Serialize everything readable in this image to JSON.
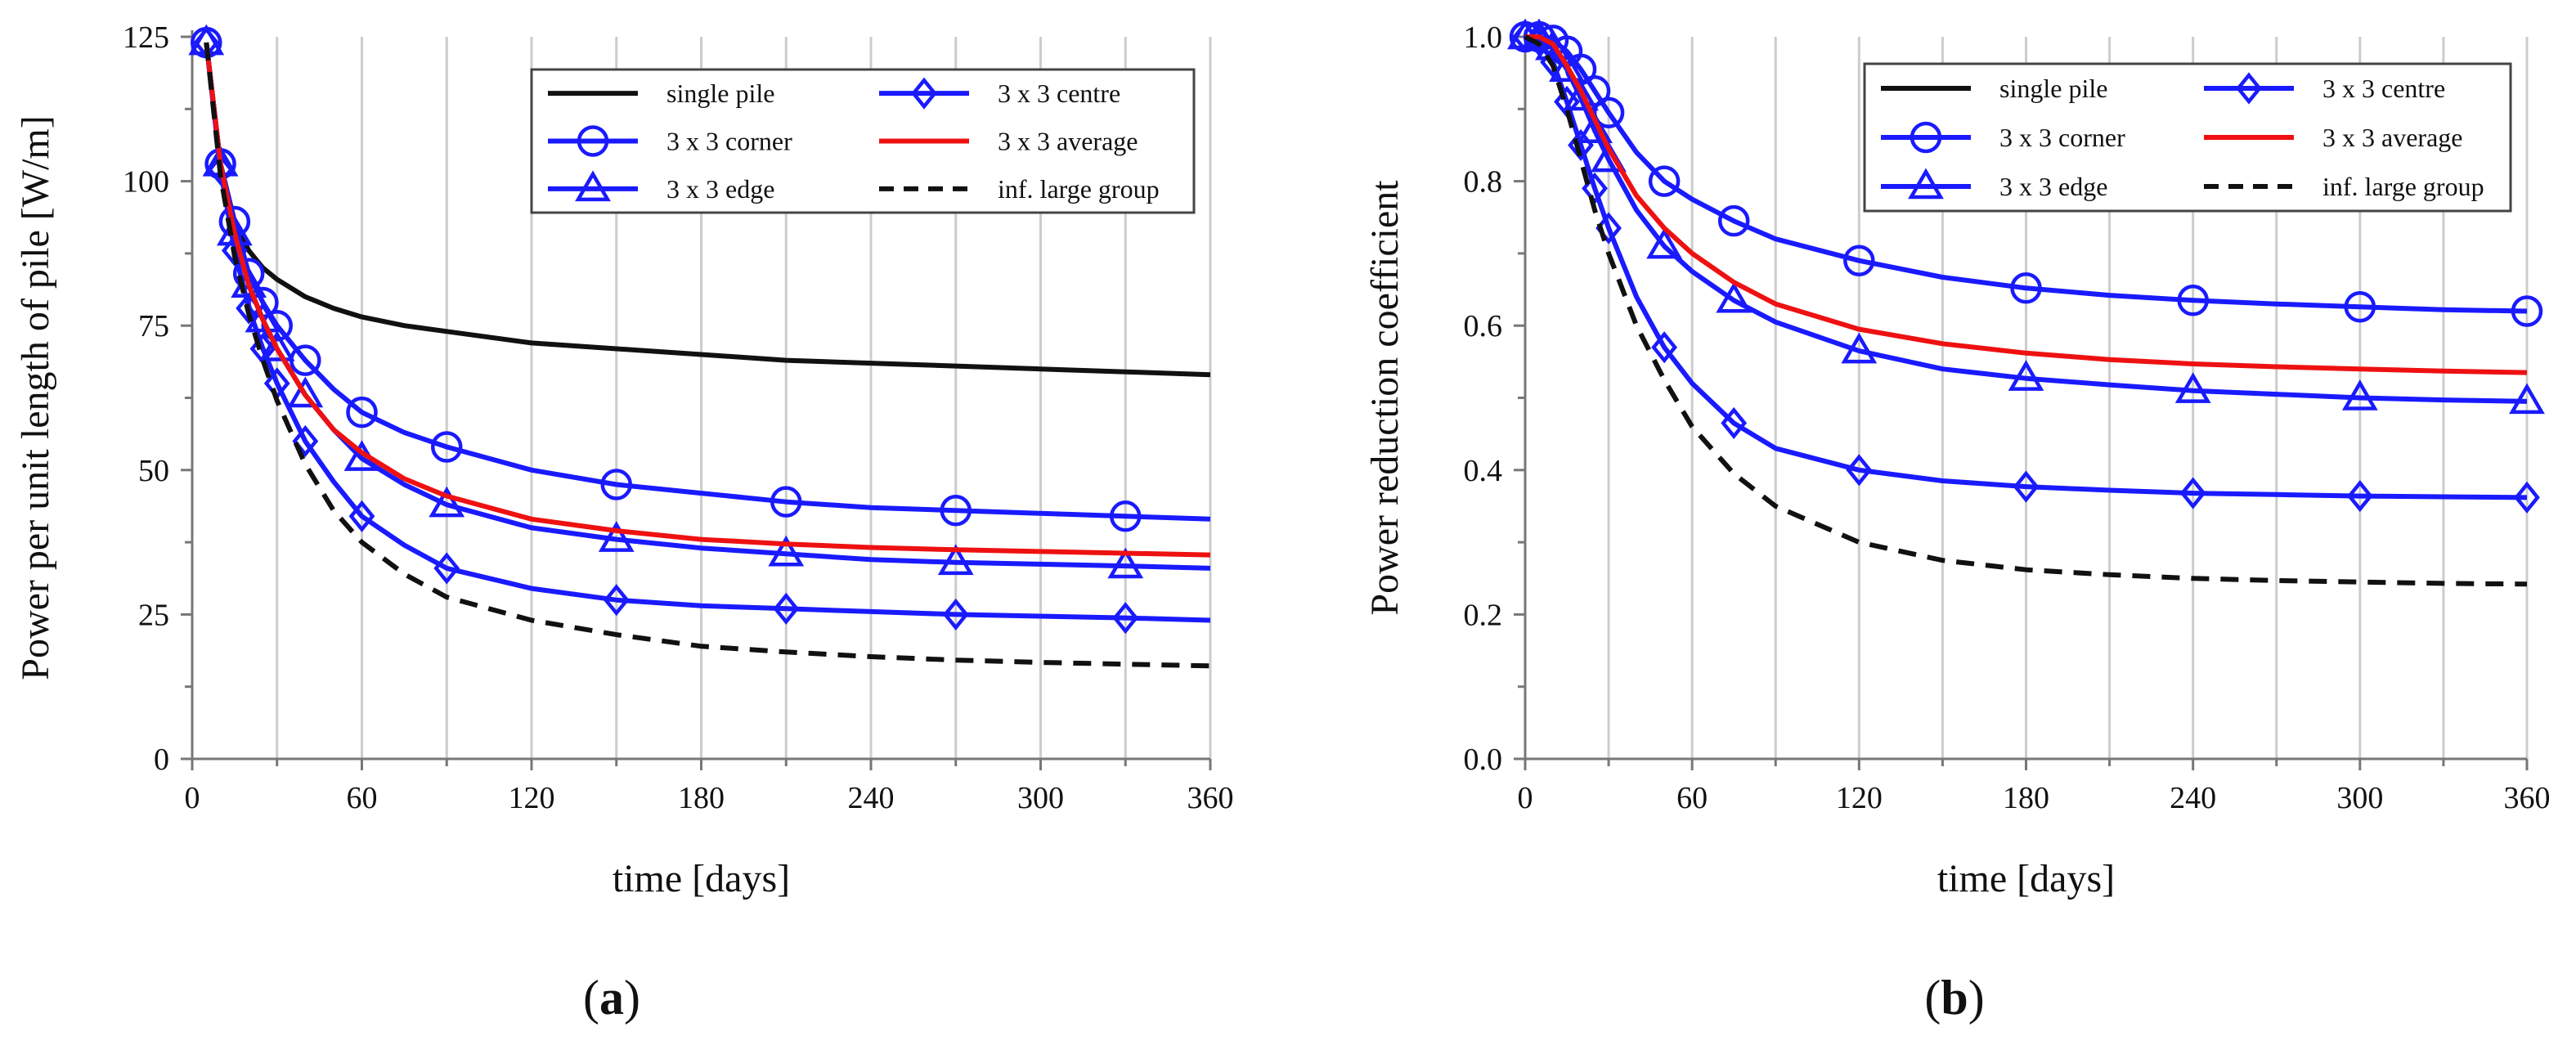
{
  "chart_data": [
    {
      "type": "line",
      "panel_label": {
        "open": "(",
        "letter": "a",
        "close": ")"
      },
      "xlabel": "time [days]",
      "ylabel": "Power per unit length of pile [W/m]",
      "xlim": [
        0,
        360
      ],
      "ylim": [
        0,
        125
      ],
      "xticks": [
        0,
        60,
        120,
        180,
        240,
        300,
        360
      ],
      "yticks": [
        0,
        25,
        50,
        75,
        100,
        125
      ],
      "legend_position": "top-right",
      "series": [
        {
          "name": "single pile",
          "color": "#111111",
          "dash": "solid",
          "marker": "none",
          "x": [
            5,
            10,
            15,
            20,
            25,
            30,
            40,
            50,
            60,
            75,
            90,
            120,
            150,
            180,
            210,
            240,
            270,
            300,
            330,
            360
          ],
          "y": [
            124,
            103,
            93,
            88,
            85,
            83,
            80,
            78,
            76.5,
            75,
            74,
            72,
            71,
            70,
            69,
            68.5,
            68,
            67.5,
            67,
            66.5
          ]
        },
        {
          "name": "3 x 3 corner",
          "color": "#1a1aff",
          "dash": "solid",
          "marker": "circle",
          "x": [
            5,
            10,
            15,
            20,
            25,
            30,
            40,
            50,
            60,
            75,
            90,
            120,
            150,
            180,
            210,
            240,
            270,
            300,
            330,
            360
          ],
          "y": [
            124,
            103,
            93,
            84,
            79,
            75,
            69,
            64,
            60,
            56.5,
            54,
            50,
            47.5,
            46,
            44.5,
            43.5,
            43,
            42.5,
            42,
            41.5
          ]
        },
        {
          "name": "3 x 3 edge",
          "color": "#1a1aff",
          "dash": "solid",
          "marker": "triangle",
          "x": [
            5,
            10,
            15,
            20,
            25,
            30,
            40,
            50,
            60,
            75,
            90,
            120,
            150,
            180,
            210,
            240,
            270,
            300,
            330,
            360
          ],
          "y": [
            124,
            103,
            91,
            82,
            76,
            71,
            63,
            57,
            52,
            47.5,
            44,
            40,
            38,
            36.5,
            35.5,
            34.5,
            34,
            33.7,
            33.4,
            33
          ]
        },
        {
          "name": "3 x 3 centre",
          "color": "#1a1aff",
          "dash": "solid",
          "marker": "diamond",
          "x": [
            5,
            10,
            15,
            20,
            25,
            30,
            40,
            50,
            60,
            75,
            90,
            120,
            150,
            180,
            210,
            240,
            270,
            300,
            330,
            360
          ],
          "y": [
            124,
            102,
            88,
            78,
            71,
            65,
            55,
            48,
            42,
            37,
            33,
            29.5,
            27.5,
            26.5,
            26,
            25.5,
            25,
            24.7,
            24.4,
            24
          ]
        },
        {
          "name": "3 x 3 average",
          "color": "#ee1111",
          "dash": "solid",
          "marker": "none",
          "x": [
            5,
            10,
            15,
            20,
            25,
            30,
            40,
            50,
            60,
            75,
            90,
            120,
            150,
            180,
            210,
            240,
            270,
            300,
            330,
            360
          ],
          "y": [
            124,
            103,
            91,
            82,
            76,
            71,
            63,
            57,
            53,
            48.5,
            45.5,
            41.5,
            39.5,
            38,
            37.2,
            36.6,
            36.2,
            35.9,
            35.6,
            35.3
          ]
        },
        {
          "name": "inf. large group",
          "color": "#111111",
          "dash": "dashed",
          "marker": "none",
          "x": [
            5,
            10,
            15,
            20,
            25,
            30,
            40,
            50,
            60,
            75,
            90,
            120,
            150,
            180,
            210,
            240,
            270,
            300,
            330,
            360
          ],
          "y": [
            124,
            101,
            87,
            77,
            69,
            62,
            51,
            43,
            37.5,
            32,
            28,
            24,
            21.5,
            19.5,
            18.5,
            17.7,
            17.1,
            16.7,
            16.4,
            16.1
          ]
        }
      ]
    },
    {
      "type": "line",
      "panel_label": {
        "open": "(",
        "letter": "b",
        "close": ")"
      },
      "xlabel": "time [days]",
      "ylabel": "Power reduction coefficient",
      "xlim": [
        0,
        360
      ],
      "ylim": [
        0,
        1.0
      ],
      "xticks": [
        0,
        60,
        120,
        180,
        240,
        300,
        360
      ],
      "yticks": [
        0,
        0.2,
        0.4,
        0.6,
        0.8,
        1.0
      ],
      "ytick_labels": [
        "0.0",
        "0.2",
        "0.4",
        "0.6",
        "0.8",
        "1.0"
      ],
      "legend_position": "top-right",
      "series": [
        {
          "name": "single pile",
          "color": "#111111",
          "dash": "solid",
          "marker": "none",
          "x": [],
          "y": []
        },
        {
          "name": "3 x 3 corner",
          "color": "#1a1aff",
          "dash": "solid",
          "marker": "circle",
          "x": [
            0,
            5,
            10,
            15,
            20,
            25,
            30,
            40,
            50,
            60,
            75,
            90,
            120,
            150,
            180,
            210,
            240,
            270,
            300,
            330,
            360
          ],
          "y": [
            1.0,
            1.0,
            0.995,
            0.98,
            0.955,
            0.925,
            0.895,
            0.84,
            0.8,
            0.775,
            0.745,
            0.72,
            0.69,
            0.667,
            0.652,
            0.642,
            0.635,
            0.63,
            0.626,
            0.622,
            0.62
          ]
        },
        {
          "name": "3 x 3 edge",
          "color": "#1a1aff",
          "dash": "solid",
          "marker": "triangle",
          "x": [
            0,
            5,
            10,
            15,
            20,
            25,
            30,
            40,
            50,
            60,
            75,
            90,
            120,
            150,
            180,
            210,
            240,
            270,
            300,
            330,
            360
          ],
          "y": [
            1.0,
            1.0,
            0.985,
            0.955,
            0.915,
            0.87,
            0.83,
            0.76,
            0.71,
            0.675,
            0.635,
            0.605,
            0.565,
            0.54,
            0.527,
            0.518,
            0.51,
            0.505,
            0.5,
            0.497,
            0.495
          ]
        },
        {
          "name": "3 x 3 centre",
          "color": "#1a1aff",
          "dash": "solid",
          "marker": "diamond",
          "x": [
            0,
            5,
            10,
            15,
            20,
            25,
            30,
            40,
            50,
            60,
            75,
            90,
            120,
            150,
            180,
            210,
            240,
            270,
            300,
            330,
            360
          ],
          "y": [
            1.0,
            0.995,
            0.965,
            0.91,
            0.85,
            0.79,
            0.735,
            0.64,
            0.57,
            0.52,
            0.465,
            0.43,
            0.4,
            0.385,
            0.377,
            0.372,
            0.368,
            0.366,
            0.364,
            0.363,
            0.362
          ]
        },
        {
          "name": "3 x 3 average",
          "color": "#ee1111",
          "dash": "solid",
          "marker": "none",
          "x": [
            0,
            5,
            10,
            15,
            20,
            25,
            30,
            40,
            50,
            60,
            75,
            90,
            120,
            150,
            180,
            210,
            240,
            270,
            300,
            330,
            360
          ],
          "y": [
            1.0,
            1.0,
            0.99,
            0.96,
            0.925,
            0.885,
            0.845,
            0.78,
            0.735,
            0.7,
            0.66,
            0.63,
            0.595,
            0.575,
            0.562,
            0.553,
            0.547,
            0.543,
            0.54,
            0.537,
            0.535
          ]
        },
        {
          "name": "inf. large group",
          "color": "#111111",
          "dash": "dashed",
          "marker": "none",
          "x": [
            0,
            5,
            10,
            15,
            20,
            25,
            30,
            40,
            50,
            60,
            75,
            90,
            120,
            150,
            180,
            210,
            240,
            270,
            300,
            330,
            360
          ],
          "y": [
            1.0,
            0.99,
            0.96,
            0.9,
            0.83,
            0.76,
            0.7,
            0.6,
            0.525,
            0.46,
            0.395,
            0.35,
            0.3,
            0.275,
            0.262,
            0.255,
            0.25,
            0.247,
            0.245,
            0.243,
            0.242
          ]
        }
      ]
    }
  ]
}
